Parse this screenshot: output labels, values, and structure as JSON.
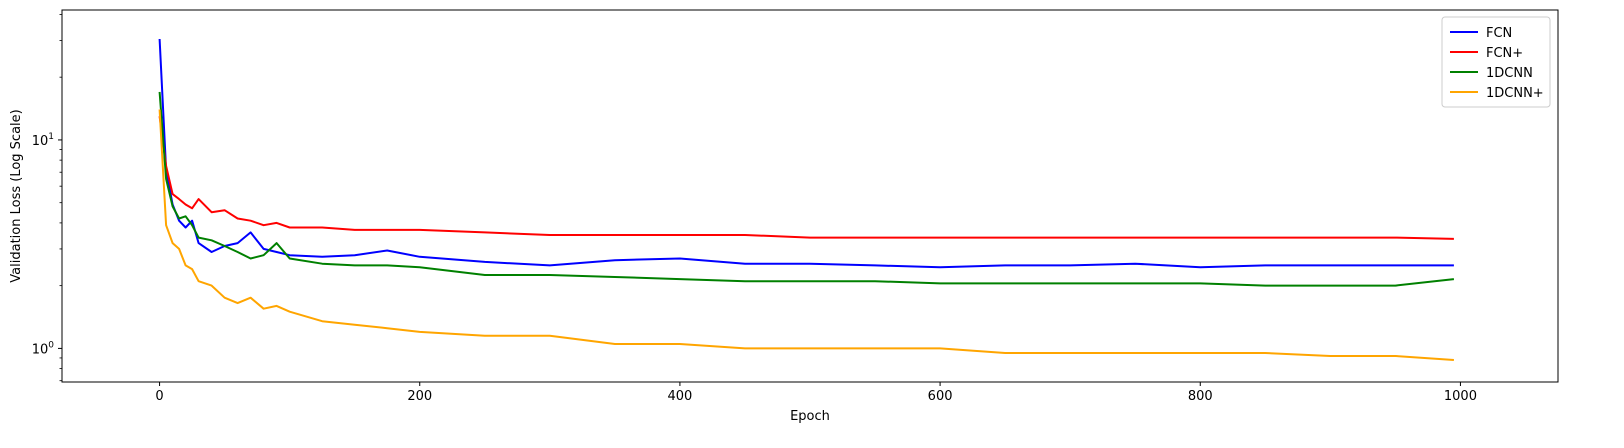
{
  "chart_data": {
    "type": "line",
    "title": "",
    "xlabel": "Epoch",
    "ylabel": "Validation Loss (Log Scale)",
    "xlim": [
      -75,
      1075
    ],
    "ylim": [
      0.69,
      42
    ],
    "yscale": "log",
    "grid": false,
    "legend_position": "top-right",
    "x_ticks": [
      0,
      200,
      400,
      600,
      800,
      1000
    ],
    "x_tick_labels": [
      "0",
      "200",
      "400",
      "600",
      "800",
      "1000"
    ],
    "y_major_ticks": [
      1,
      10
    ],
    "y_tick_labels": [
      "10^0",
      "10^1"
    ],
    "x": [
      0,
      5,
      10,
      15,
      20,
      25,
      30,
      40,
      50,
      60,
      70,
      80,
      90,
      100,
      125,
      150,
      175,
      200,
      250,
      300,
      350,
      400,
      450,
      500,
      550,
      600,
      650,
      700,
      750,
      800,
      850,
      900,
      950,
      995
    ],
    "series": [
      {
        "name": "FCN",
        "color": "#0000ff",
        "values": [
          30.5,
          7.2,
          4.9,
          4.1,
          3.8,
          4.1,
          3.2,
          2.9,
          3.1,
          3.2,
          3.6,
          3.0,
          2.9,
          2.8,
          2.75,
          2.8,
          2.95,
          2.75,
          2.6,
          2.5,
          2.65,
          2.7,
          2.55,
          2.55,
          2.5,
          2.45,
          2.5,
          2.5,
          2.55,
          2.45,
          2.5,
          2.5,
          2.5,
          2.5
        ]
      },
      {
        "name": "FCN+",
        "color": "#ff0000",
        "values": [
          13.0,
          7.5,
          5.5,
          5.2,
          4.9,
          4.7,
          5.2,
          4.5,
          4.6,
          4.2,
          4.1,
          3.9,
          4.0,
          3.8,
          3.8,
          3.7,
          3.7,
          3.7,
          3.6,
          3.5,
          3.5,
          3.5,
          3.5,
          3.4,
          3.4,
          3.4,
          3.4,
          3.4,
          3.4,
          3.4,
          3.4,
          3.4,
          3.4,
          3.35
        ]
      },
      {
        "name": "1DCNN",
        "color": "#008000",
        "values": [
          17.0,
          6.5,
          4.8,
          4.2,
          4.3,
          3.9,
          3.4,
          3.3,
          3.1,
          2.9,
          2.7,
          2.8,
          3.2,
          2.7,
          2.55,
          2.5,
          2.5,
          2.45,
          2.25,
          2.25,
          2.2,
          2.15,
          2.1,
          2.1,
          2.1,
          2.05,
          2.05,
          2.05,
          2.05,
          2.05,
          2.0,
          2.0,
          2.0,
          2.15
        ]
      },
      {
        "name": "1DCNN+",
        "color": "#ffa500",
        "values": [
          14.0,
          3.9,
          3.2,
          3.0,
          2.5,
          2.4,
          2.1,
          2.0,
          1.75,
          1.65,
          1.75,
          1.55,
          1.6,
          1.5,
          1.35,
          1.3,
          1.25,
          1.2,
          1.15,
          1.15,
          1.05,
          1.05,
          1.0,
          1.0,
          1.0,
          1.0,
          0.95,
          0.95,
          0.95,
          0.95,
          0.95,
          0.92,
          0.92,
          0.88
        ]
      }
    ]
  }
}
